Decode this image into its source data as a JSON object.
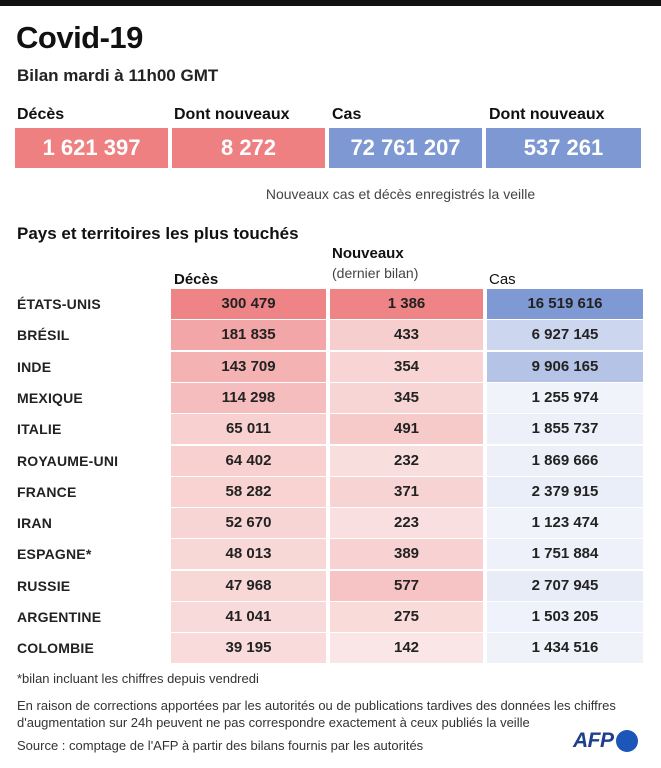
{
  "title": "Covid-19",
  "subtitle": "Bilan mardi à 11h00 GMT",
  "summary": [
    {
      "label": "Décès",
      "value": "1 621 397",
      "kind": "deaths"
    },
    {
      "label": "Dont nouveaux",
      "value": "8 272",
      "kind": "deaths"
    },
    {
      "label": "Cas",
      "value": "72 761 207",
      "kind": "cases"
    },
    {
      "label": "Dont nouveaux",
      "value": "537 261",
      "kind": "cases"
    }
  ],
  "summary_note": "Nouveaux cas et décès enregistrés la veille",
  "table_title": "Pays et territoires les plus touchés",
  "headers": {
    "deaths": "Décès",
    "new": "Nouveaux",
    "new_sub": "(dernier bilan)",
    "cases": "Cas"
  },
  "colors": {
    "deaths_scale": "#ef8486",
    "cases_scale": "#7e99d3",
    "deaths_summary": "#ee8082",
    "cases_summary": "#7d98d2"
  },
  "chart_data": {
    "type": "table",
    "title": "Pays et territoires les plus touchés",
    "columns": [
      "Décès",
      "Nouveaux (dernier bilan)",
      "Cas"
    ],
    "rows": [
      {
        "country": "ÉTATS-UNIS",
        "deaths": 300479,
        "new": 1386,
        "cases": 16519616,
        "deaths_label": "300 479",
        "new_label": "1 386",
        "cases_label": "16 519 616"
      },
      {
        "country": "BRÉSIL",
        "deaths": 181835,
        "new": 433,
        "cases": 6927145,
        "deaths_label": "181 835",
        "new_label": "433",
        "cases_label": "6 927 145"
      },
      {
        "country": "INDE",
        "deaths": 143709,
        "new": 354,
        "cases": 9906165,
        "deaths_label": "143 709",
        "new_label": "354",
        "cases_label": "9 906 165"
      },
      {
        "country": "MEXIQUE",
        "deaths": 114298,
        "new": 345,
        "cases": 1255974,
        "deaths_label": "114 298",
        "new_label": "345",
        "cases_label": "1 255 974"
      },
      {
        "country": "ITALIE",
        "deaths": 65011,
        "new": 491,
        "cases": 1855737,
        "deaths_label": "65 011",
        "new_label": "491",
        "cases_label": "1 855 737"
      },
      {
        "country": "ROYAUME-UNI",
        "deaths": 64402,
        "new": 232,
        "cases": 1869666,
        "deaths_label": "64 402",
        "new_label": "232",
        "cases_label": "1 869 666"
      },
      {
        "country": "FRANCE",
        "deaths": 58282,
        "new": 371,
        "cases": 2379915,
        "deaths_label": "58 282",
        "new_label": "371",
        "cases_label": "2 379 915"
      },
      {
        "country": "IRAN",
        "deaths": 52670,
        "new": 223,
        "cases": 1123474,
        "deaths_label": "52 670",
        "new_label": "223",
        "cases_label": "1 123 474"
      },
      {
        "country": "ESPAGNE*",
        "deaths": 48013,
        "new": 389,
        "cases": 1751884,
        "deaths_label": "48 013",
        "new_label": "389",
        "cases_label": "1 751 884"
      },
      {
        "country": "RUSSIE",
        "deaths": 47968,
        "new": 577,
        "cases": 2707945,
        "deaths_label": "47 968",
        "new_label": "577",
        "cases_label": "2 707 945"
      },
      {
        "country": "ARGENTINE",
        "deaths": 41041,
        "new": 275,
        "cases": 1503205,
        "deaths_label": "41 041",
        "new_label": "275",
        "cases_label": "1 503 205"
      },
      {
        "country": "COLOMBIE",
        "deaths": 39195,
        "new": 142,
        "cases": 1434516,
        "deaths_label": "39 195",
        "new_label": "142",
        "cases_label": "1 434 516"
      }
    ]
  },
  "footnote_star": "*bilan incluant les chiffres depuis vendredi",
  "footnote_corrections": "En raison de corrections apportées par les autorités ou de publications tardives des données  les chiffres d'augmentation sur 24h peuvent ne pas correspondre exactement à ceux publiés la veille",
  "source": "Source : comptage de l'AFP à partir des bilans fournis par les autorités",
  "logo_text": "AFP"
}
